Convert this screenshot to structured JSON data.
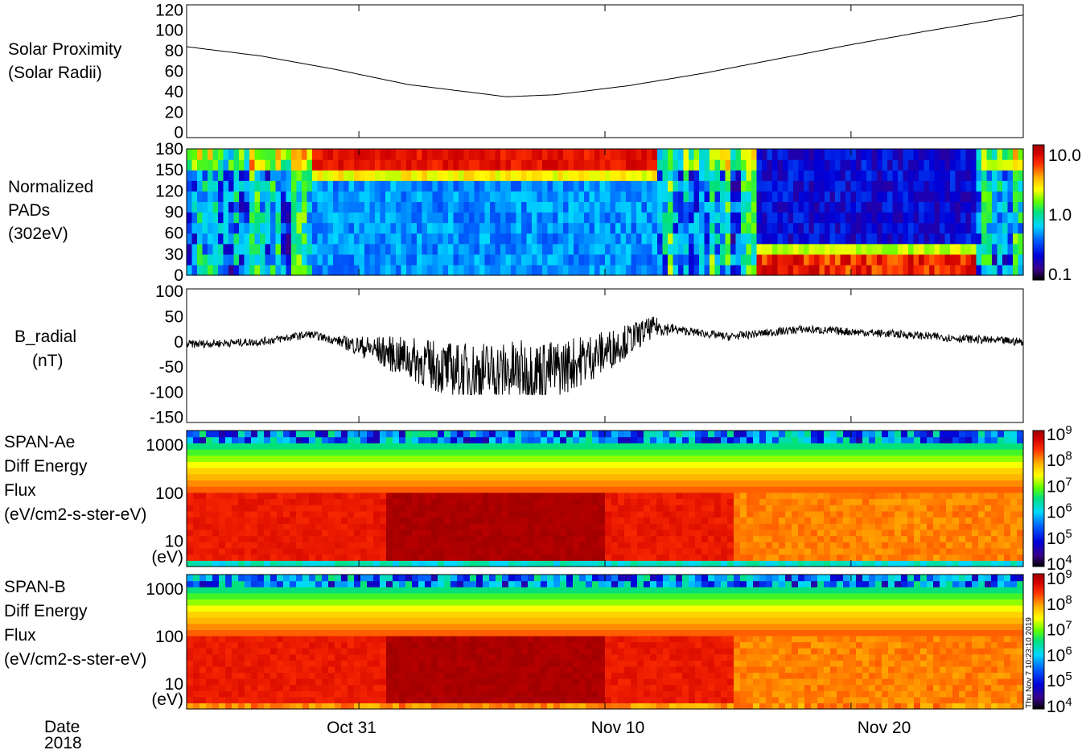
{
  "colors": {
    "background": "#ffffff",
    "axes": "#000000",
    "line": "#000000",
    "colormap": [
      "#000000",
      "#3b0088",
      "#0000d8",
      "#0064ff",
      "#00d8ff",
      "#00e080",
      "#60ff00",
      "#ffff00",
      "#ffb000",
      "#ff3000",
      "#d00000",
      "#a00000"
    ]
  },
  "chart_data": [
    {
      "type": "line",
      "panel_label": [
        "Solar Proximity",
        "(Solar Radii)"
      ],
      "yticks": [
        "0",
        "20",
        "40",
        "60",
        "80",
        "100",
        "120"
      ],
      "ylim": [
        -5,
        125
      ],
      "x_days_note": "x axis shared: dates Oct 24 2018 - Nov 27 2018",
      "x": [
        "Oct 24",
        "Oct 27",
        "Oct 30",
        "Nov 2",
        "Nov 6",
        "Nov 8",
        "Nov 11",
        "Nov 14",
        "Nov 17",
        "Nov 20",
        "Nov 23",
        "Nov 27"
      ],
      "y": [
        84,
        75,
        62,
        47,
        35,
        37,
        46,
        58,
        72,
        86,
        99,
        115
      ]
    },
    {
      "type": "heatmap",
      "panel_label": [
        "Normalized",
        "PADs",
        "(302eV)"
      ],
      "yticks": [
        "0",
        "30",
        "60",
        "90",
        "120",
        "150",
        "180"
      ],
      "ylim": [
        0,
        180
      ],
      "colorbar": {
        "scale": "log",
        "range": [
          0.1,
          10.0
        ],
        "ticks": [
          "0.1",
          "1.0",
          "10.0"
        ]
      }
    },
    {
      "type": "line",
      "panel_label": [
        "B_radial",
        "(nT)"
      ],
      "yticks": [
        "-150",
        "-100",
        "-50",
        "0",
        "50",
        "100"
      ],
      "ylim": [
        -160,
        105
      ],
      "x": [
        "Oct 24",
        "Oct 27",
        "Oct 29",
        "Nov 1",
        "Nov 4",
        "Nov 6",
        "Nov 8",
        "Nov 10",
        "Nov 12",
        "Nov 15",
        "Nov 18",
        "Nov 22",
        "Nov 25",
        "Nov 27"
      ],
      "y": [
        -5,
        0,
        15,
        -20,
        -60,
        -60,
        -55,
        -20,
        30,
        10,
        25,
        15,
        5,
        0
      ]
    },
    {
      "type": "heatmap",
      "panel_label": [
        "SPAN-Ae",
        "Diff Energy",
        "Flux",
        "(eV/cm2-s-ster-eV)"
      ],
      "yticks": [
        "10",
        "100",
        "1000"
      ],
      "yunit": "(eV)",
      "yscale": "log",
      "ylim": [
        3,
        2000
      ],
      "colorbar": {
        "scale": "log",
        "range": [
          10000,
          1000000000
        ],
        "ticks": [
          "10^4",
          "10^5",
          "10^6",
          "10^7",
          "10^8",
          "10^9"
        ]
      }
    },
    {
      "type": "heatmap",
      "panel_label": [
        "SPAN-B",
        "Diff Energy",
        "Flux",
        "(eV/cm2-s-ster-eV)"
      ],
      "yticks": [
        "10",
        "100",
        "1000"
      ],
      "yunit": "(eV)",
      "yscale": "log",
      "ylim": [
        3,
        2000
      ],
      "colorbar": {
        "scale": "log",
        "range": [
          10000,
          1000000000
        ],
        "ticks": [
          "10^4",
          "10^5",
          "10^6",
          "10^7",
          "10^8",
          "10^9"
        ]
      }
    }
  ],
  "xaxis": {
    "label": "Date",
    "year": "2018",
    "ticks": [
      "Oct 31",
      "Nov 10",
      "Nov 20"
    ]
  },
  "timestamp": "Thu Nov  7 10:23:10 2019"
}
